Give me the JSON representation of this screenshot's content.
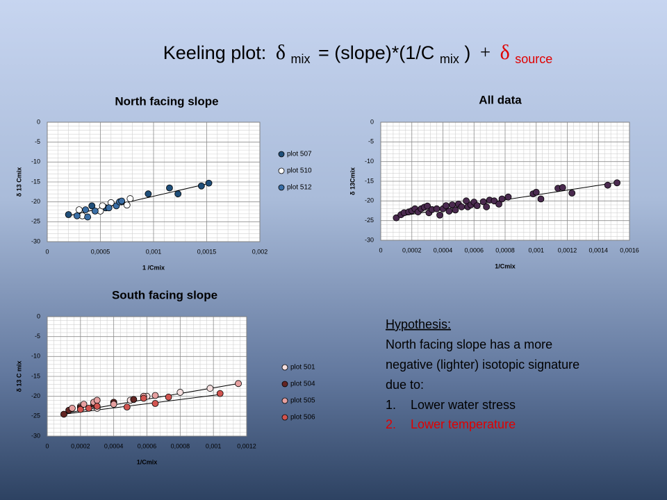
{
  "slide_title": {
    "parts": [
      "Keeling plot:",
      "δ",
      "mix",
      "= (slope)*(1/C",
      "mix",
      ")",
      "+",
      "δ",
      "source"
    ]
  },
  "hypothesis": {
    "heading": "Hypothesis:",
    "text": [
      "North facing slope has a more",
      "negative (lighter) isotopic signature",
      "due to:"
    ],
    "items": [
      {
        "number": "1.",
        "text": "Lower water stress"
      },
      {
        "number": "2.",
        "text": "Lower temperature"
      }
    ]
  },
  "chart_data": [
    {
      "type": "scatter",
      "title": "North facing slope",
      "xlabel": "1 /Cmix",
      "ylabel": "δ 13 Cmix",
      "xlim": [
        0,
        0.002
      ],
      "ylim": [
        -30,
        0
      ],
      "xticks": [
        0,
        {
          "value": 0.0005,
          "label": "0,0005"
        },
        {
          "value": 0.001,
          "label": "0,001"
        },
        {
          "value": 0.0015,
          "label": "0,0015"
        },
        {
          "value": 0.002,
          "label": "0,002"
        }
      ],
      "yticks": [
        0,
        -5,
        -10,
        -15,
        -20,
        -25,
        -30
      ],
      "grid": true,
      "minor_grid": true,
      "legend": "right",
      "series": [
        {
          "name": "plot 507",
          "color": "#1f4e79",
          "x": [
            0.0002,
            0.00042,
            0.00055,
            0.0007,
            0.00095,
            0.00115,
            0.00123,
            0.00145,
            0.00152
          ],
          "y": [
            -23.2,
            -21,
            -21.5,
            -20,
            -18,
            -16.5,
            -18,
            -16,
            -15.3
          ]
        },
        {
          "name": "plot 510",
          "color": "#ffffff",
          "x": [
            0.0003,
            0.00033,
            0.0005,
            0.00052,
            0.0006,
            0.00075,
            0.00078
          ],
          "y": [
            -22,
            -23.5,
            -22.3,
            -21,
            -20.2,
            -20.8,
            -19.2
          ]
        },
        {
          "name": "plot 512",
          "color": "#3a6ea5",
          "x": [
            0.00028,
            0.00036,
            0.00038,
            0.00045,
            0.00058,
            0.00065,
            0.00068,
            0.0007
          ],
          "y": [
            -23.5,
            -22,
            -23.8,
            -22.3,
            -21.5,
            -21,
            -20,
            -19.8
          ]
        }
      ],
      "trendlines": [
        {
          "x": [
            0.0002,
            0.00155
          ],
          "y": [
            -23.5,
            -15.2
          ]
        }
      ]
    },
    {
      "type": "scatter",
      "title": "All data",
      "xlabel": "1/Cmix",
      "ylabel": "δ 13Cmix",
      "xlim": [
        0,
        0.0016
      ],
      "ylim": [
        -30,
        0
      ],
      "xticks": [
        0,
        {
          "value": 0.0002,
          "label": "0,0002"
        },
        {
          "value": 0.0004,
          "label": "0,0004"
        },
        {
          "value": 0.0006,
          "label": "0,0006"
        },
        {
          "value": 0.0008,
          "label": "0,0008"
        },
        {
          "value": 0.001,
          "label": "0,001"
        },
        {
          "value": 0.0012,
          "label": "0,0012"
        },
        {
          "value": 0.0014,
          "label": "0,0014"
        },
        {
          "value": 0.0016,
          "label": "0,0016"
        }
      ],
      "yticks": [
        0,
        -5,
        -10,
        -15,
        -20,
        -25,
        -30
      ],
      "grid": true,
      "minor_grid": true,
      "series": [
        {
          "color": "#4a2a4f",
          "x": [
            0.0001,
            0.00013,
            0.00015,
            0.00018,
            0.0002,
            0.00022,
            0.00024,
            0.00026,
            0.00028,
            0.0003,
            0.00031,
            0.00033,
            0.00036,
            0.00038,
            0.0004,
            0.00042,
            0.00044,
            0.00046,
            0.00048,
            0.0005,
            0.00052,
            0.00055,
            0.00056,
            0.00058,
            0.0006,
            0.00062,
            0.00066,
            0.00068,
            0.0007,
            0.00073,
            0.00076,
            0.00078,
            0.00082,
            0.00098,
            0.001,
            0.00103,
            0.00114,
            0.00117,
            0.00123,
            0.00146,
            0.00152
          ],
          "y": [
            -24.3,
            -23.5,
            -23,
            -22.8,
            -22.5,
            -22,
            -22.8,
            -22,
            -21.6,
            -21.3,
            -23,
            -22.2,
            -22,
            -23.6,
            -22,
            -21.2,
            -22.6,
            -21,
            -22.3,
            -20.8,
            -21.5,
            -20,
            -21.5,
            -21,
            -20.3,
            -21.2,
            -20.2,
            -21.5,
            -19.8,
            -20,
            -20.8,
            -19.5,
            -19,
            -18.2,
            -17.8,
            -19.5,
            -16.8,
            -16.6,
            -18,
            -16,
            -15.4
          ]
        }
      ],
      "trendlines": [
        {
          "x": [
            0.0001,
            0.00152
          ],
          "y": [
            -24,
            -15.3
          ]
        }
      ]
    },
    {
      "type": "scatter",
      "title": "South facing slope",
      "xlabel": "1/Cmix",
      "ylabel": "δ 13 C mix",
      "xlim": [
        0,
        0.0012
      ],
      "ylim": [
        -30,
        0
      ],
      "xticks": [
        0,
        {
          "value": 0.0002,
          "label": "0,0002"
        },
        {
          "value": 0.0004,
          "label": "0,0004"
        },
        {
          "value": 0.0006,
          "label": "0,0006"
        },
        {
          "value": 0.0008,
          "label": "0,0008"
        },
        {
          "value": 0.001,
          "label": "0,001"
        },
        {
          "value": 0.0012,
          "label": "0,0012"
        }
      ],
      "yticks": [
        0,
        -5,
        -10,
        -15,
        -20,
        -25,
        -30
      ],
      "grid": true,
      "minor_grid": true,
      "legend": "right",
      "series": [
        {
          "name": "plot 501",
          "color": "#f4dede",
          "x": [
            0.0002,
            0.0003,
            0.0005,
            0.0006,
            0.0008,
            0.00098
          ],
          "y": [
            -22.5,
            -23,
            -21,
            -20,
            -19,
            -18
          ]
        },
        {
          "name": "plot 504",
          "color": "#632523",
          "x": [
            0.0001,
            0.00013,
            0.0002,
            0.00028,
            0.0004,
            0.00052
          ],
          "y": [
            -24.5,
            -23.5,
            -22.8,
            -22,
            -21.5,
            -20.8
          ]
        },
        {
          "name": "plot 505",
          "color": "#e6a0a0",
          "x": [
            0.00015,
            0.00022,
            0.00028,
            0.0003,
            0.0004,
            0.00058,
            0.00065,
            0.00115
          ],
          "y": [
            -23,
            -22,
            -21.5,
            -21,
            -22,
            -20,
            -19.8,
            -16.8
          ]
        },
        {
          "name": "plot 506",
          "color": "#d25450",
          "x": [
            0.0002,
            0.00025,
            0.0003,
            0.00048,
            0.00058,
            0.00065,
            0.00073,
            0.00104
          ],
          "y": [
            -23.3,
            -23,
            -22.5,
            -22.7,
            -20.5,
            -21.8,
            -20.2,
            -19.3
          ]
        }
      ],
      "trendlines": [
        {
          "x": [
            0.0001,
            0.00115
          ],
          "y": [
            -24.3,
            -16.8
          ]
        },
        {
          "x": [
            0.0001,
            0.00105
          ],
          "y": [
            -24.5,
            -19.5
          ]
        }
      ]
    }
  ]
}
